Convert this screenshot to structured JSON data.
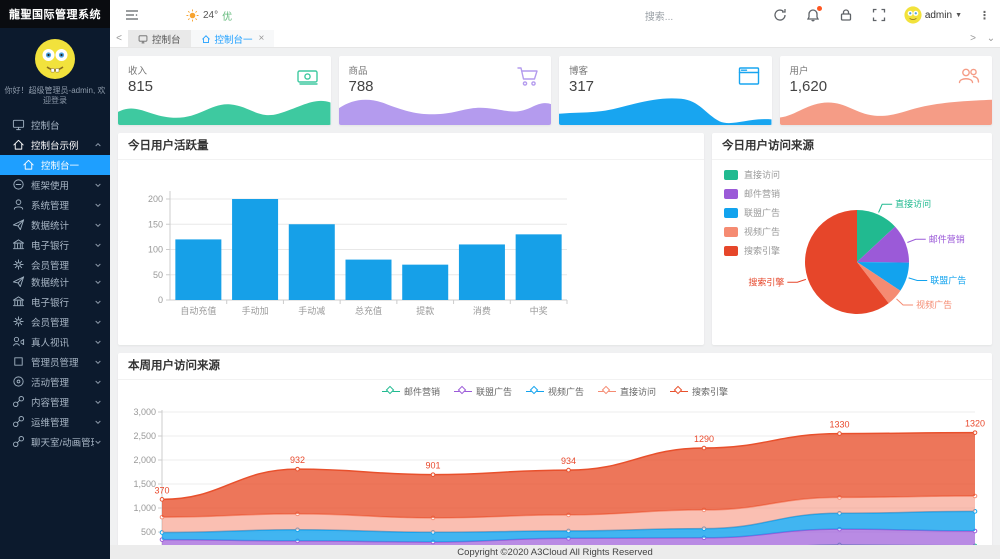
{
  "app": {
    "title": "龍聖国际管理系统",
    "greeting": "你好！超级管理员-admin, 欢迎登录"
  },
  "topbar": {
    "weather_temp": "24°",
    "weather_quality": "优",
    "search_placeholder": "搜索...",
    "username": "admin",
    "icons": [
      "hamburger-icon",
      "sun-icon",
      "refresh-icon",
      "bell-icon",
      "lock-icon",
      "fullscreen-icon",
      "avatar",
      "caret-down-icon",
      "kebab-menu-icon"
    ]
  },
  "tabbar": {
    "prev": "<",
    "next": ">",
    "collapse": "⌄",
    "tabs": [
      {
        "label": "控制台",
        "icon": "desktop-icon",
        "style": "grey",
        "closable": false
      },
      {
        "label": "控制台一",
        "icon": "home-icon",
        "style": "sel",
        "closable": true,
        "close_glyph": "×"
      }
    ]
  },
  "sidebar": {
    "items": [
      {
        "label": "控制台",
        "icon": "desktop"
      },
      {
        "label": "控制台示例",
        "icon": "home",
        "chevron": "up",
        "open": true,
        "children": [
          {
            "label": "控制台一",
            "icon": "home",
            "active": true
          }
        ]
      },
      {
        "label": "框架使用",
        "icon": "minus-circle",
        "chevron": "down"
      },
      {
        "label": "系统管理",
        "icon": "user",
        "chevron": "down"
      },
      {
        "label": "数据统计",
        "icon": "send",
        "chevron": "down"
      },
      {
        "label": "电子银行",
        "icon": "bank",
        "chevron": "down"
      },
      {
        "label": "会员管理",
        "icon": "gear",
        "chevron": "down"
      },
      {
        "label": "数据统计",
        "icon": "send",
        "chevron": "down",
        "tight": true
      },
      {
        "label": "电子银行",
        "icon": "bank",
        "chevron": "down"
      },
      {
        "label": "会员管理",
        "icon": "gear",
        "chevron": "down"
      },
      {
        "label": "真人视讯",
        "icon": "video",
        "chevron": "down"
      },
      {
        "label": "管理员管理",
        "icon": "square",
        "chevron": "down"
      },
      {
        "label": "活动管理",
        "icon": "target",
        "chevron": "down"
      },
      {
        "label": "内容管理",
        "icon": "link",
        "chevron": "down"
      },
      {
        "label": "运维管理",
        "icon": "link",
        "chevron": "down"
      },
      {
        "label": "聊天室/动画管理",
        "icon": "link",
        "chevron": "down"
      }
    ]
  },
  "cards": [
    {
      "label": "收入",
      "value": "815",
      "icon": "money-icon",
      "color": "#3ec9a0",
      "wave": 0
    },
    {
      "label": "商品",
      "value": "788",
      "icon": "cart-icon",
      "color": "#b49bee",
      "wave": 1
    },
    {
      "label": "博客",
      "value": "317",
      "icon": "browser-icon",
      "color": "#18a5f0",
      "wave": 2
    },
    {
      "label": "用户",
      "value": "1,620",
      "icon": "users-icon",
      "color": "#f59c86",
      "wave": 3
    }
  ],
  "panels": {
    "bar_title": "今日用户活跃量",
    "pie_title": "今日用户访问来源",
    "area_title": "本周用户访问来源"
  },
  "chart_data": [
    {
      "type": "bar",
      "title": "今日用户活跃量",
      "categories": [
        "自动充值",
        "手动加",
        "手动减",
        "总充值",
        "提款",
        "消费",
        "中奖"
      ],
      "values": [
        120,
        200,
        150,
        80,
        70,
        110,
        130
      ],
      "ylim": [
        0,
        200
      ],
      "yticks": [
        0,
        50,
        100,
        150,
        200
      ],
      "bar_color": "#16a0e8",
      "grid": true,
      "xlabel": "",
      "ylabel": ""
    },
    {
      "type": "pie",
      "title": "今日用户访问来源",
      "legend_position": "top-left",
      "slices": [
        {
          "name": "直接访问",
          "value": 335,
          "color": "#21ba90"
        },
        {
          "name": "邮件营销",
          "value": 310,
          "color": "#9b5ad8"
        },
        {
          "name": "联盟广告",
          "value": 234,
          "color": "#12a3ee"
        },
        {
          "name": "视频广告",
          "value": 135,
          "color": "#f58b72"
        },
        {
          "name": "搜索引擎",
          "value": 1548,
          "color": "#e6462a"
        }
      ]
    },
    {
      "type": "area",
      "stacked": true,
      "title": "本周用户访问来源",
      "legend_position": "top-center",
      "x": [
        1,
        2,
        3,
        4,
        5,
        6,
        7
      ],
      "x_labels_visible": false,
      "yticks": [
        500,
        1000,
        1500,
        2000,
        2500,
        3000
      ],
      "ylim": [
        0,
        3000
      ],
      "series": [
        {
          "name": "邮件营销",
          "color": "#21ba90",
          "opacity": 0.8,
          "values": [
            120,
            132,
            101,
            134,
            90,
            230,
            210
          ]
        },
        {
          "name": "联盟广告",
          "color": "#9b5ad8",
          "opacity": 0.7,
          "values": [
            220,
            182,
            191,
            234,
            290,
            330,
            310
          ]
        },
        {
          "name": "视频广告",
          "color": "#12a3ee",
          "opacity": 0.8,
          "values": [
            150,
            232,
            201,
            154,
            190,
            330,
            410
          ]
        },
        {
          "name": "直接访问",
          "color": "#f58b72",
          "opacity": 0.55,
          "values": [
            320,
            332,
            301,
            334,
            390,
            330,
            320
          ]
        },
        {
          "name": "搜索引擎",
          "color": "#e8502c",
          "opacity": 0.78,
          "values": [
            370,
            932,
            901,
            934,
            1290,
            1330,
            1320
          ],
          "labels_visible": true
        }
      ],
      "visible_data_labels": [
        370,
        932,
        901,
        934,
        1290,
        1330,
        1320
      ],
      "label_color": "#e8492c"
    }
  ],
  "footer": {
    "copyright": "Copyright ©2020 A3Cloud All Rights Reserved"
  },
  "colors": {
    "accent_blue": "#1e9fff",
    "sidebar_bg": "#0c1a2d",
    "green_ok": "#5fb878"
  }
}
